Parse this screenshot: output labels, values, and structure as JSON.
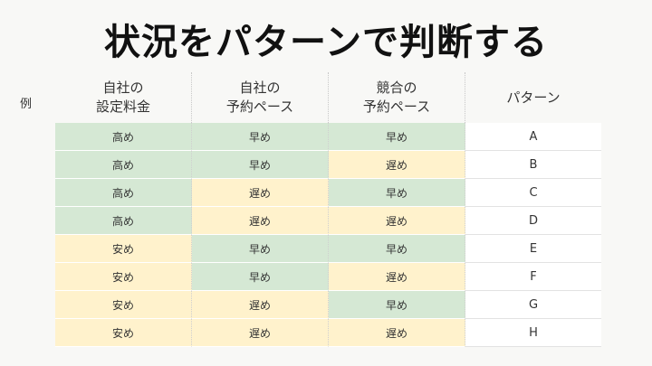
{
  "title": "状況をパターンで判断する",
  "example_label": "例",
  "headers": [
    "自社の\n設定料金",
    "自社の\n予約ペース",
    "競合の\n予約ペース",
    "パターン"
  ],
  "colors": {
    "fast": "#d5e8d4",
    "slow": "#fff2cc",
    "pattern": "#ffffff"
  },
  "rows": [
    {
      "price": "高め",
      "own_pace": "早め",
      "competitor_pace": "早め",
      "pattern": "A"
    },
    {
      "price": "高め",
      "own_pace": "早め",
      "competitor_pace": "遅め",
      "pattern": "B"
    },
    {
      "price": "高め",
      "own_pace": "遅め",
      "competitor_pace": "早め",
      "pattern": "C"
    },
    {
      "price": "高め",
      "own_pace": "遅め",
      "competitor_pace": "遅め",
      "pattern": "D"
    },
    {
      "price": "安め",
      "own_pace": "早め",
      "competitor_pace": "早め",
      "pattern": "E"
    },
    {
      "price": "安め",
      "own_pace": "早め",
      "competitor_pace": "遅め",
      "pattern": "F"
    },
    {
      "price": "安め",
      "own_pace": "遅め",
      "competitor_pace": "早め",
      "pattern": "G"
    },
    {
      "price": "安め",
      "own_pace": "遅め",
      "competitor_pace": "遅め",
      "pattern": "H"
    }
  ]
}
